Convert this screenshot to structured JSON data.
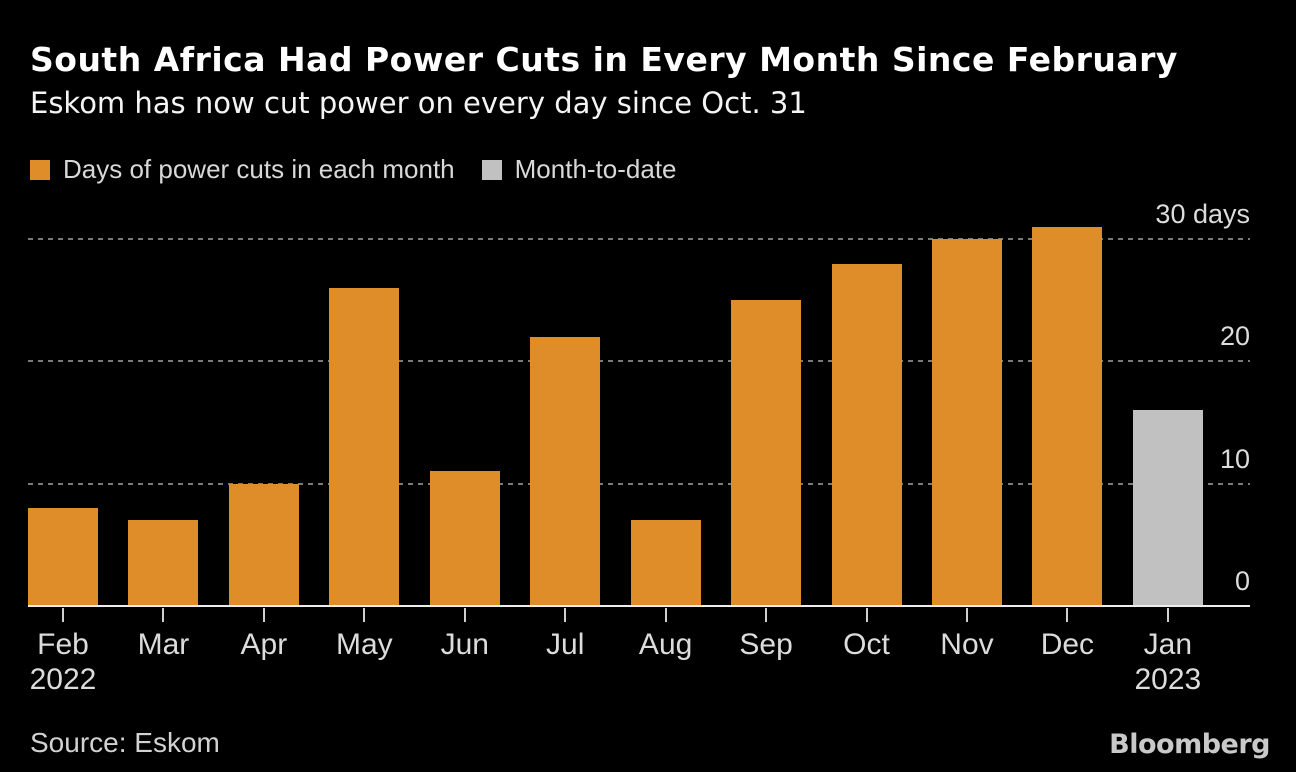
{
  "header": {
    "title": "South Africa Had Power Cuts in Every Month Since February",
    "subtitle": "Eskom has now cut power on every day since Oct. 31"
  },
  "chart_data": {
    "type": "bar",
    "title": "South Africa Had Power Cuts in Every Month Since February",
    "subtitle": "Eskom has now cut power on every day since Oct. 31",
    "categories": [
      "Feb",
      "Mar",
      "Apr",
      "May",
      "Jun",
      "Jul",
      "Aug",
      "Sep",
      "Oct",
      "Nov",
      "Dec",
      "Jan"
    ],
    "category_years": [
      "2022",
      "",
      "",
      "",
      "",
      "",
      "",
      "",
      "",
      "",
      "",
      "2023"
    ],
    "series": [
      {
        "name": "Days of power cuts in each month",
        "color": "#DF8D28",
        "values": [
          8,
          7,
          10,
          26,
          11,
          22,
          7,
          25,
          28,
          30,
          31,
          null
        ]
      },
      {
        "name": "Month-to-date",
        "color": "#C1C1C1",
        "values": [
          null,
          null,
          null,
          null,
          null,
          null,
          null,
          null,
          null,
          null,
          null,
          16
        ]
      }
    ],
    "y_ticks": [
      {
        "value": 0,
        "label": "0"
      },
      {
        "value": 10,
        "label": "10"
      },
      {
        "value": 20,
        "label": "20"
      },
      {
        "value": 30,
        "label": "30 days"
      }
    ],
    "ylim": [
      0,
      34
    ],
    "unit": "days",
    "grid": "horizontal-dotted",
    "legend_position": "top-left"
  },
  "footer": {
    "source": "Source: Eskom",
    "logo": "Bloomberg"
  },
  "colors": {
    "background": "#000000",
    "title_text": "#FFFFFF",
    "subtitle_text": "#F4F4F4",
    "legend_text": "#D8D8D8",
    "bar_monthly": "#DF8D28",
    "bar_month_to_date": "#C1C1C1",
    "gridline": "#7A7A7A",
    "axis_line": "#EDEDED",
    "tick": "#D0D0D0",
    "axis_label_text": "#DCDCDC",
    "source_text": "#D2D2D2",
    "logo_text": "#C9C9C9"
  }
}
